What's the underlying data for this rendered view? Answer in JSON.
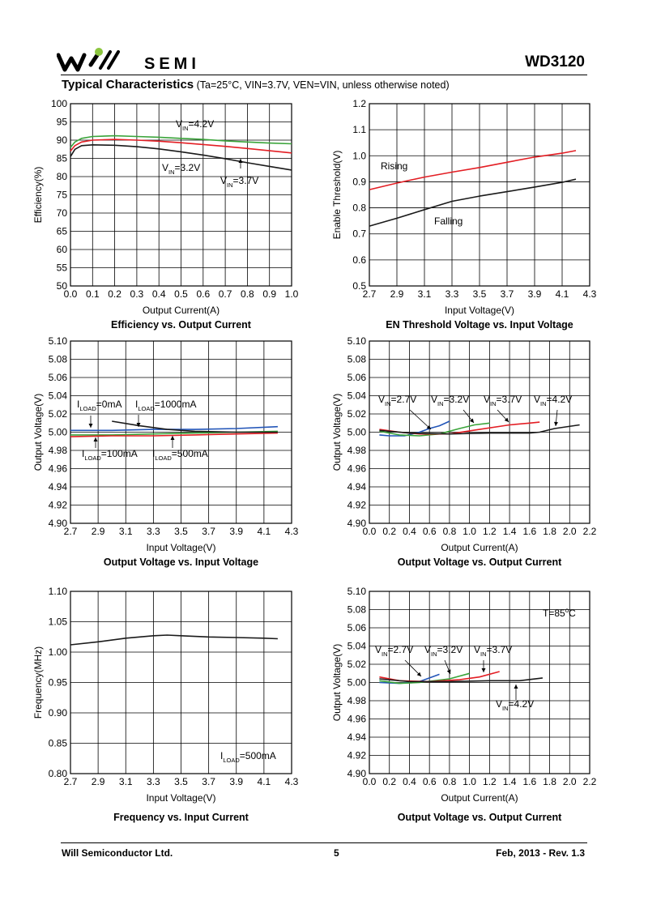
{
  "header": {
    "brand": "SEMI",
    "part_number": "WD3120",
    "heading_title": "Typical Characteristics",
    "heading_conditions": "(Ta=25°C, VIN=3.7V, VEN=VIN, unless otherwise noted)"
  },
  "footer": {
    "company": "Will Semiconductor Ltd.",
    "page": "5",
    "date_rev": "Feb, 2013 - Rev. 1.3"
  },
  "colors": {
    "black": "#1a1a1a",
    "red": "#e31e24",
    "green": "#3aa43a",
    "blue": "#2255b8"
  },
  "chart_data": [
    {
      "type": "line",
      "title": "Efficiency vs. Output Current",
      "xlabel": "Output Current(A)",
      "ylabel": "Efficiency(%)",
      "xlim": [
        0,
        1
      ],
      "ylim": [
        50,
        100
      ],
      "xticks": [
        "0.0",
        "0.1",
        "0.2",
        "0.3",
        "0.4",
        "0.5",
        "0.6",
        "0.7",
        "0.8",
        "0.9",
        "1.0"
      ],
      "yticks": [
        "50",
        "55",
        "60",
        "65",
        "70",
        "75",
        "80",
        "85",
        "90",
        "95",
        "100"
      ],
      "series": [
        {
          "name": "VIN=4.2V",
          "color": "green",
          "x": [
            0,
            0.02,
            0.05,
            0.1,
            0.2,
            0.3,
            0.4,
            0.5,
            0.6,
            0.7,
            0.8,
            0.9,
            1.0
          ],
          "y": [
            88,
            89.5,
            90.5,
            91,
            91.2,
            91,
            90.8,
            90.5,
            90.2,
            89.8,
            89.5,
            89.2,
            89
          ]
        },
        {
          "name": "VIN=3.7V",
          "color": "red",
          "x": [
            0,
            0.02,
            0.05,
            0.1,
            0.2,
            0.3,
            0.4,
            0.5,
            0.6,
            0.7,
            0.8,
            0.9,
            1.0
          ],
          "y": [
            87,
            88.5,
            89.5,
            90,
            90.2,
            90,
            89.7,
            89.3,
            88.8,
            88.3,
            87.7,
            87.1,
            86.5
          ]
        },
        {
          "name": "VIN=3.2V",
          "color": "black",
          "x": [
            0,
            0.02,
            0.05,
            0.1,
            0.2,
            0.3,
            0.4,
            0.5,
            0.6,
            0.7,
            0.8,
            0.9,
            1.0
          ],
          "y": [
            85.5,
            87.5,
            88.5,
            88.7,
            88.6,
            88.2,
            87.6,
            86.8,
            85.9,
            84.9,
            83.8,
            82.8,
            81.8
          ]
        }
      ],
      "annotations": [
        {
          "base": "V",
          "sub": "IN",
          "rest": "=4.2V"
        },
        {
          "base": "V",
          "sub": "IN",
          "rest": "=3.2V"
        },
        {
          "base": "V",
          "sub": "IN",
          "rest": "=3.7V"
        }
      ]
    },
    {
      "type": "line",
      "title": "EN Threshold Voltage vs. Input Voltage",
      "xlabel": "Input Voltage(V)",
      "ylabel": "Enable Threshold(V)",
      "xlim": [
        2.7,
        4.3
      ],
      "ylim": [
        0.5,
        1.2
      ],
      "xticks": [
        "2.7",
        "2.9",
        "3.1",
        "3.3",
        "3.5",
        "3.7",
        "3.9",
        "4.1",
        "4.3"
      ],
      "yticks": [
        "0.5",
        "0.6",
        "0.7",
        "0.8",
        "0.9",
        "1.0",
        "1.1",
        "1.2"
      ],
      "series": [
        {
          "name": "Rising",
          "color": "red",
          "x": [
            2.7,
            2.9,
            3.1,
            3.3,
            3.5,
            3.7,
            3.9,
            4.1,
            4.2
          ],
          "y": [
            0.87,
            0.895,
            0.918,
            0.937,
            0.955,
            0.975,
            0.995,
            1.01,
            1.02
          ]
        },
        {
          "name": "Falling",
          "color": "black",
          "x": [
            2.7,
            2.9,
            3.1,
            3.3,
            3.5,
            3.7,
            3.9,
            4.1,
            4.2
          ],
          "y": [
            0.73,
            0.76,
            0.793,
            0.825,
            0.845,
            0.862,
            0.88,
            0.898,
            0.91
          ]
        }
      ],
      "annotations": [
        {
          "base": "Rising",
          "sub": "",
          "rest": ""
        },
        {
          "base": "Falling",
          "sub": "",
          "rest": ""
        }
      ]
    },
    {
      "type": "line",
      "title": "Output Voltage vs. Input Voltage",
      "xlabel": "Input Voltage(V)",
      "ylabel": "Output Voltage(V)",
      "xlim": [
        2.7,
        4.3
      ],
      "ylim": [
        4.9,
        5.1
      ],
      "xticks": [
        "2.7",
        "2.9",
        "3.1",
        "3.3",
        "3.5",
        "3.7",
        "3.9",
        "4.1",
        "4.3"
      ],
      "yticks": [
        "4.90",
        "4.92",
        "4.94",
        "4.96",
        "4.98",
        "5.00",
        "5.02",
        "5.04",
        "5.06",
        "5.08",
        "5.10"
      ],
      "series": [
        {
          "name": "ILOAD=0mA",
          "color": "blue",
          "x": [
            2.7,
            3.0,
            3.3,
            3.6,
            3.9,
            4.2
          ],
          "y": [
            5.002,
            5.002,
            5.003,
            5.003,
            5.004,
            5.006
          ]
        },
        {
          "name": "ILOAD=100mA",
          "color": "green",
          "x": [
            2.7,
            3.0,
            3.3,
            3.6,
            3.9,
            4.2
          ],
          "y": [
            4.997,
            4.997,
            4.998,
            4.999,
            5.0,
            5.001
          ]
        },
        {
          "name": "ILOAD=500mA",
          "color": "red",
          "x": [
            2.7,
            3.0,
            3.3,
            3.6,
            3.9,
            4.2
          ],
          "y": [
            4.995,
            4.996,
            4.996,
            4.997,
            4.998,
            4.999
          ]
        },
        {
          "name": "ILOAD=1000mA",
          "color": "black",
          "x": [
            3.0,
            3.2,
            3.4,
            3.6,
            3.9,
            4.2
          ],
          "y": [
            5.012,
            5.007,
            5.003,
            5.001,
            5.0,
            5.0
          ]
        }
      ],
      "annotations": [
        {
          "base": "I",
          "sub": "LOAD",
          "rest": "=0mA"
        },
        {
          "base": "I",
          "sub": "LOAD",
          "rest": "=1000mA"
        },
        {
          "base": "I",
          "sub": "LOAD",
          "rest": "=100mA"
        },
        {
          "base": "I",
          "sub": "LOAD",
          "rest": "=500mA"
        }
      ]
    },
    {
      "type": "line",
      "title": "Output Voltage vs. Output Current",
      "xlabel": "Output Current(A)",
      "ylabel": "Output Voltage(V)",
      "xlim": [
        0,
        2.2
      ],
      "ylim": [
        4.9,
        5.1
      ],
      "xticks": [
        "0.0",
        "0.2",
        "0.4",
        "0.6",
        "0.8",
        "1.0",
        "1.2",
        "1.4",
        "1.6",
        "1.8",
        "2.0",
        "2.2"
      ],
      "yticks": [
        "4.90",
        "4.92",
        "4.94",
        "4.96",
        "4.98",
        "5.00",
        "5.02",
        "5.04",
        "5.06",
        "5.08",
        "5.10"
      ],
      "series": [
        {
          "name": "VIN=2.7V",
          "color": "blue",
          "x": [
            0.1,
            0.2,
            0.35,
            0.5,
            0.6,
            0.7,
            0.8
          ],
          "y": [
            4.997,
            4.996,
            4.996,
            5.0,
            5.004,
            5.007,
            5.012
          ]
        },
        {
          "name": "VIN=3.2V",
          "color": "green",
          "x": [
            0.1,
            0.3,
            0.5,
            0.7,
            0.9,
            1.05,
            1.2
          ],
          "y": [
            5.001,
            4.997,
            4.996,
            4.998,
            5.004,
            5.008,
            5.01
          ]
        },
        {
          "name": "VIN=3.7V",
          "color": "red",
          "x": [
            0.1,
            0.3,
            0.5,
            0.8,
            1.1,
            1.4,
            1.6,
            1.7
          ],
          "y": [
            5.003,
            5.0,
            4.998,
            4.998,
            5.003,
            5.008,
            5.01,
            5.011
          ]
        },
        {
          "name": "VIN=4.2V",
          "color": "black",
          "x": [
            0.1,
            0.4,
            0.8,
            1.2,
            1.6,
            1.7,
            1.85,
            2.1
          ],
          "y": [
            5.002,
            4.999,
            4.998,
            4.999,
            4.999,
            5.0,
            5.004,
            5.008
          ]
        }
      ],
      "annotations": [
        {
          "base": "V",
          "sub": "IN",
          "rest": "=2.7V"
        },
        {
          "base": "V",
          "sub": "IN",
          "rest": "=3.2V"
        },
        {
          "base": "V",
          "sub": "IN",
          "rest": "=3.7V"
        },
        {
          "base": "V",
          "sub": "IN",
          "rest": "=4.2V"
        }
      ]
    },
    {
      "type": "line",
      "title": "Frequency vs. Input Current",
      "xlabel": "Input Voltage(V)",
      "ylabel": "Frequency(MHz)",
      "xlim": [
        2.7,
        4.3
      ],
      "ylim": [
        0.8,
        1.1
      ],
      "xticks": [
        "2.7",
        "2.9",
        "3.1",
        "3.3",
        "3.5",
        "3.7",
        "3.9",
        "4.1",
        "4.3"
      ],
      "yticks": [
        "0.80",
        "0.85",
        "0.90",
        "0.95",
        "1.00",
        "1.05",
        "1.10"
      ],
      "series": [
        {
          "name": "ILOAD=500mA",
          "color": "black",
          "x": [
            2.7,
            2.9,
            3.1,
            3.3,
            3.4,
            3.5,
            3.7,
            3.9,
            4.1,
            4.2
          ],
          "y": [
            1.012,
            1.017,
            1.023,
            1.027,
            1.028,
            1.027,
            1.025,
            1.024,
            1.023,
            1.022
          ]
        }
      ],
      "annotations": [
        {
          "base": "I",
          "sub": "LOAD",
          "rest": "=500mA"
        }
      ]
    },
    {
      "type": "line",
      "title": "Output Voltage vs. Output Current",
      "xlabel": "Output Current(A)",
      "ylabel": "Output Voltage(V)",
      "xlim": [
        0,
        2.2
      ],
      "ylim": [
        4.9,
        5.1
      ],
      "xticks": [
        "0.0",
        "0.2",
        "0.4",
        "0.6",
        "0.8",
        "1.0",
        "1.2",
        "1.4",
        "1.6",
        "1.8",
        "2.0",
        "2.2"
      ],
      "yticks": [
        "4.90",
        "4.92",
        "4.94",
        "4.96",
        "4.98",
        "5.00",
        "5.02",
        "5.04",
        "5.06",
        "5.08",
        "5.10"
      ],
      "series": [
        {
          "name": "VIN=2.7V",
          "color": "blue",
          "x": [
            0.1,
            0.3,
            0.5,
            0.6,
            0.7
          ],
          "y": [
            5.0,
            4.999,
            5.001,
            5.005,
            5.009
          ]
        },
        {
          "name": "VIN=3.2V",
          "color": "green",
          "x": [
            0.1,
            0.3,
            0.5,
            0.8,
            1.0
          ],
          "y": [
            5.002,
            4.999,
            5.0,
            5.004,
            5.01
          ]
        },
        {
          "name": "VIN=3.7V",
          "color": "red",
          "x": [
            0.1,
            0.3,
            0.6,
            0.9,
            1.1,
            1.3
          ],
          "y": [
            5.006,
            5.002,
            5.001,
            5.003,
            5.006,
            5.012
          ]
        },
        {
          "name": "VIN=4.2V",
          "color": "black",
          "x": [
            0.1,
            0.4,
            0.8,
            1.2,
            1.5,
            1.73
          ],
          "y": [
            5.004,
            5.001,
            5.001,
            5.002,
            5.002,
            5.005
          ]
        }
      ],
      "annotations": [
        {
          "base": "V",
          "sub": "IN",
          "rest": "=2.7V"
        },
        {
          "base": "V",
          "sub": "IN",
          "rest": "=3.2V"
        },
        {
          "base": "V",
          "sub": "IN",
          "rest": "=3.7V"
        },
        {
          "base": "V",
          "sub": "IN",
          "rest": "=4.2V"
        },
        {
          "base": "T=85",
          "sub": "",
          "rest": "C",
          "sup": "o"
        }
      ]
    }
  ]
}
